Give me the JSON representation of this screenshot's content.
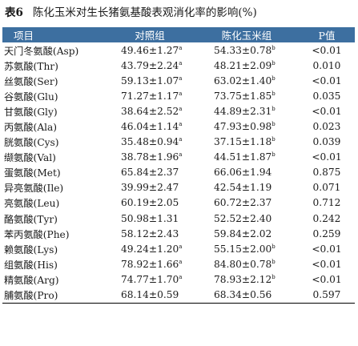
{
  "caption": {
    "number": "表6",
    "text": "陈化玉米对生长猪氨基酸表观消化率的影响(%)"
  },
  "colors": {
    "header_bg": "#3d6fa0",
    "header_text": "#ffffff"
  },
  "headers": [
    "项目",
    "对照组",
    "陈化玉米组",
    "P值"
  ],
  "rows": [
    {
      "item": "天门冬氨酸(Asp)",
      "control": "49.46±1.27",
      "control_sup": "a",
      "aged": "54.33±0.78",
      "aged_sup": "b",
      "p": "<0.01"
    },
    {
      "item": "苏氨酸(Thr)",
      "control": "43.79±2.24",
      "control_sup": "a",
      "aged": "48.21±2.09",
      "aged_sup": "b",
      "p": "0.010"
    },
    {
      "item": "丝氨酸(Ser)",
      "control": "59.13±1.07",
      "control_sup": "a",
      "aged": "63.02±1.40",
      "aged_sup": "b",
      "p": "<0.01"
    },
    {
      "item": "谷氨酸(Glu)",
      "control": "71.27±1.17",
      "control_sup": "a",
      "aged": "73.75±1.85",
      "aged_sup": "b",
      "p": "0.035"
    },
    {
      "item": "甘氨酸(Gly)",
      "control": "38.64±2.52",
      "control_sup": "a",
      "aged": "44.89±2.31",
      "aged_sup": "b",
      "p": "<0.01"
    },
    {
      "item": "丙氨酸(Ala)",
      "control": "46.04±1.14",
      "control_sup": "a",
      "aged": "47.93±0.98",
      "aged_sup": "b",
      "p": "0.023"
    },
    {
      "item": "胱氨酸(Cys)",
      "control": "35.48±0.94",
      "control_sup": "a",
      "aged": "37.15±1.18",
      "aged_sup": "b",
      "p": "0.039"
    },
    {
      "item": "缬氨酸(Val)",
      "control": "38.78±1.96",
      "control_sup": "a",
      "aged": "44.51±1.87",
      "aged_sup": "b",
      "p": "<0.01"
    },
    {
      "item": "蛋氨酸(Met)",
      "control": "65.84±2.37",
      "control_sup": "",
      "aged": "66.06±1.94",
      "aged_sup": "",
      "p": "0.875"
    },
    {
      "item": "异亮氨酸(Ile)",
      "control": "39.99±2.47",
      "control_sup": "",
      "aged": "42.54±1.19",
      "aged_sup": "",
      "p": "0.071"
    },
    {
      "item": "亮氨酸(Leu)",
      "control": "60.19±2.05",
      "control_sup": "",
      "aged": "60.72±2.37",
      "aged_sup": "",
      "p": "0.712"
    },
    {
      "item": "酪氨酸(Tyr)",
      "control": "50.98±1.31",
      "control_sup": "",
      "aged": "52.52±2.40",
      "aged_sup": "",
      "p": "0.242"
    },
    {
      "item": "苯丙氨酸(Phe)",
      "control": "58.12±2.43",
      "control_sup": "",
      "aged": "59.84±2.02",
      "aged_sup": "",
      "p": "0.259"
    },
    {
      "item": "赖氨酸(Lys)",
      "control": "49.24±1.20",
      "control_sup": "a",
      "aged": "55.15±2.00",
      "aged_sup": "b",
      "p": "<0.01"
    },
    {
      "item": "组氨酸(His)",
      "control": "78.92±1.66",
      "control_sup": "a",
      "aged": "84.80±0.78",
      "aged_sup": "b",
      "p": "<0.01"
    },
    {
      "item": "精氨酸(Arg)",
      "control": "74.77±1.70",
      "control_sup": "a",
      "aged": "78.93±2.12",
      "aged_sup": "b",
      "p": "<0.01"
    },
    {
      "item": "脯氨酸(Pro)",
      "control": "68.14±0.59",
      "control_sup": "",
      "aged": "68.34±0.56",
      "aged_sup": "",
      "p": "0.597"
    }
  ]
}
